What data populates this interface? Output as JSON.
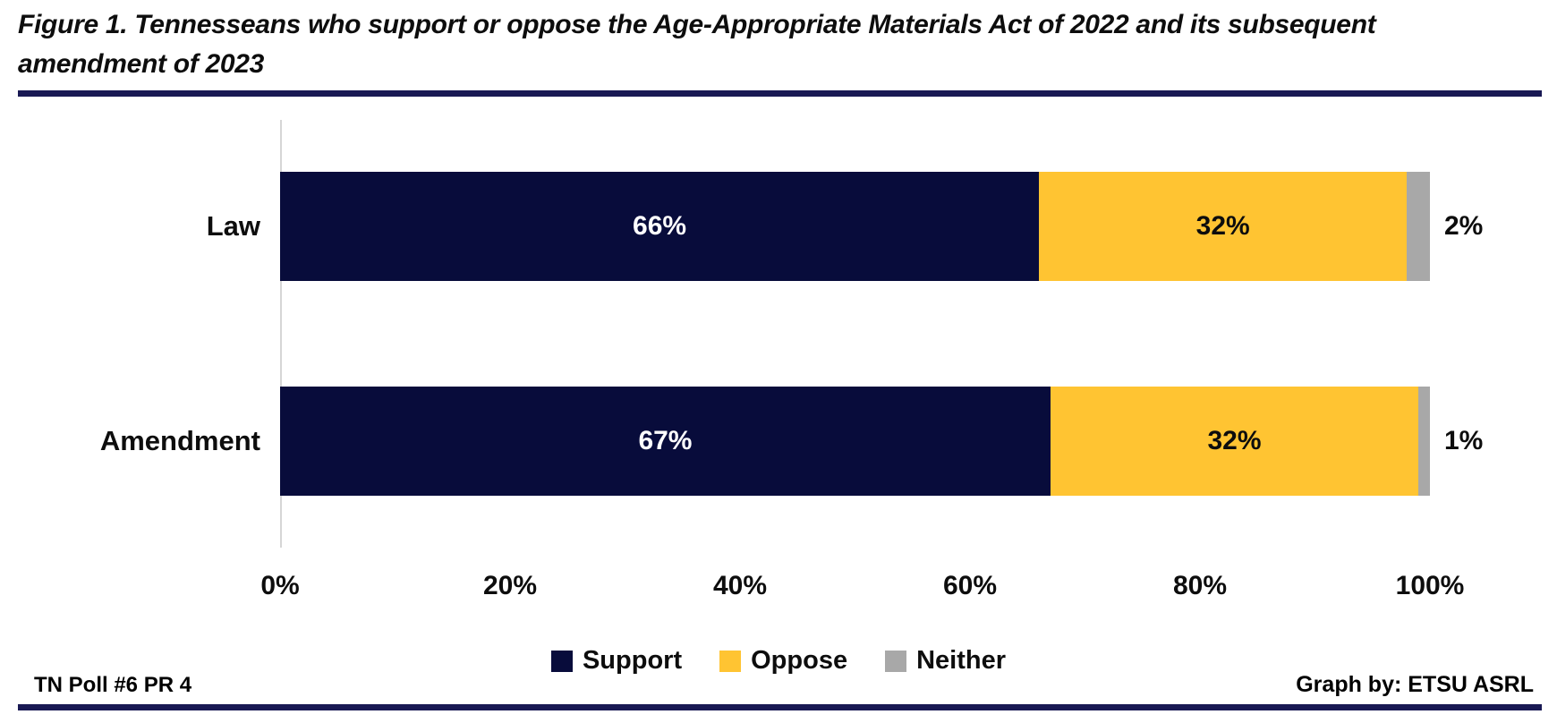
{
  "figure": {
    "title_line1": "Figure 1. Tennesseans who support or oppose the Age-Appropriate Materials Act of 2022 and its subsequent",
    "title_line2": "amendment of 2023",
    "footer_left": "TN Poll #6 PR 4",
    "footer_right": "Graph by: ETSU ASRL"
  },
  "colors": {
    "support": "#080C3B",
    "oppose": "#FFC432",
    "neither": "#A8A8A8",
    "rule": "#191954",
    "axis_line": "#D6D6D6",
    "label_on_dark": "#FFFFFF",
    "label_on_light": "#0d0d0d"
  },
  "chart_data": {
    "type": "bar",
    "orientation": "horizontal-stacked",
    "title": "Figure 1. Tennesseans who support or oppose the Age-Appropriate Materials Act of 2022 and its subsequent amendment of 2023",
    "categories": [
      "Law",
      "Amendment"
    ],
    "series": [
      {
        "name": "Support",
        "color": "#080C3B",
        "values": [
          66,
          67
        ]
      },
      {
        "name": "Oppose",
        "color": "#FFC432",
        "values": [
          32,
          32
        ]
      },
      {
        "name": "Neither",
        "color": "#A8A8A8",
        "values": [
          2,
          1
        ]
      }
    ],
    "value_suffix": "%",
    "x_ticks": [
      "0%",
      "20%",
      "40%",
      "60%",
      "80%",
      "100%"
    ],
    "xlim": [
      0,
      100
    ],
    "grid": false,
    "legend_position": "bottom",
    "data_label_placement": [
      "inside-center",
      "inside-center",
      "outside-end"
    ]
  }
}
